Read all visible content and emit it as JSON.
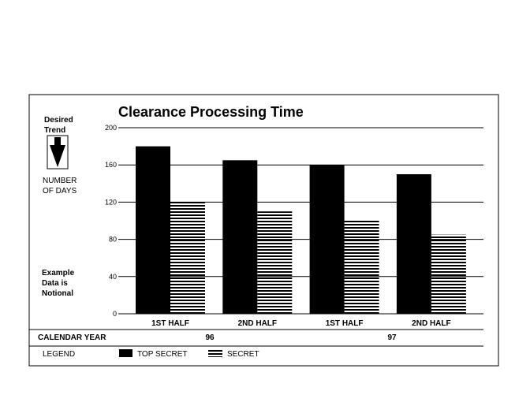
{
  "chart_data": {
    "type": "bar",
    "title": "Clearance Processing Time",
    "ylabel": "NUMBER OF DAYS",
    "ylim": [
      0,
      200
    ],
    "yticks": [
      "200",
      "160",
      "120",
      "80",
      "40",
      "0"
    ],
    "categories": [
      "1ST HALF",
      "2ND HALF",
      "1ST HALF",
      "2ND HALF"
    ],
    "series": [
      {
        "name": "TOP SECRET",
        "values": [
          180,
          165,
          160,
          150
        ]
      },
      {
        "name": "SECRET",
        "values": [
          120,
          110,
          100,
          85
        ]
      }
    ],
    "grid": true,
    "legend_position": "bottom"
  },
  "side_notes": {
    "desired_trend_line1": "Desired",
    "desired_trend_line2": "Trend",
    "days_line1": "NUMBER",
    "days_line2": "OF DAYS",
    "example_line1": "Example",
    "example_line2": "Data is",
    "example_line3": "Notional"
  },
  "calendar_year": {
    "label": "CALENDAR YEAR",
    "years": [
      "96",
      "97"
    ]
  },
  "legend": {
    "label": "LEGEND",
    "items": [
      "TOP SECRET",
      "SECRET"
    ]
  },
  "colors": {
    "top_secret": "#000000",
    "secret_stripe": "#000000",
    "background": "#ffffff"
  }
}
